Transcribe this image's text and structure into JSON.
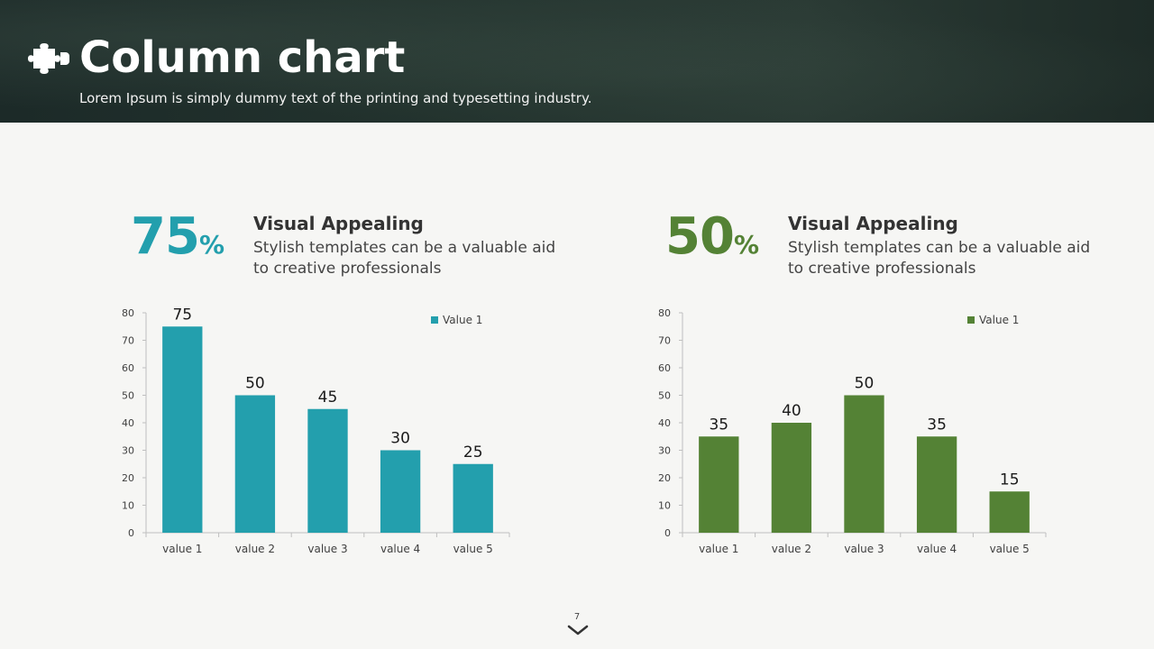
{
  "header": {
    "title": "Column chart",
    "subtitle": "Lorem Ipsum is simply dummy text of the printing and typesetting industry.",
    "icon": "puzzle-icon"
  },
  "stats": [
    {
      "number": "75",
      "symbol": "%",
      "color": "#239fad",
      "heading": "Visual Appealing",
      "text": "Stylish templates can be a valuable aid to  creative professionals"
    },
    {
      "number": "50",
      "symbol": "%",
      "color": "#548235",
      "heading": "Visual Appealing",
      "text": "Stylish templates can be a valuable aid to  creative professionals"
    }
  ],
  "chart_data": [
    {
      "type": "bar",
      "categories": [
        "value 1",
        "value 2",
        "value 3",
        "value 4",
        "value 5"
      ],
      "series": [
        {
          "name": "Value 1",
          "values": [
            75,
            50,
            45,
            30,
            25
          ],
          "color": "#239fad"
        }
      ],
      "ylim": [
        0,
        80
      ],
      "yticks": [
        0,
        10,
        20,
        30,
        40,
        50,
        60,
        70,
        80
      ],
      "legend_position": "top-right",
      "title": "",
      "xlabel": "",
      "ylabel": ""
    },
    {
      "type": "bar",
      "categories": [
        "value 1",
        "value 2",
        "value 3",
        "value 4",
        "value 5"
      ],
      "series": [
        {
          "name": "Value 1",
          "values": [
            35,
            40,
            50,
            35,
            15
          ],
          "color": "#548235"
        }
      ],
      "ylim": [
        0,
        80
      ],
      "yticks": [
        0,
        10,
        20,
        30,
        40,
        50,
        60,
        70,
        80
      ],
      "legend_position": "top-right",
      "title": "",
      "xlabel": "",
      "ylabel": ""
    }
  ],
  "footer": {
    "page_number": "7",
    "nav_icon": "chevron-down-icon"
  }
}
